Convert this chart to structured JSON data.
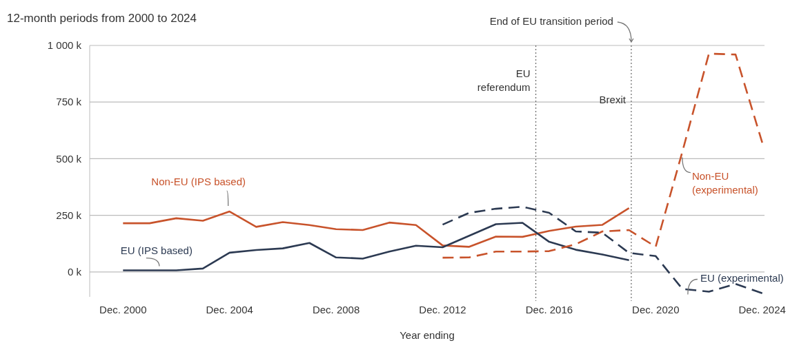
{
  "chart_data": {
    "type": "line",
    "title": "12-month periods from 2000 to 2024",
    "xlabel": "Year ending",
    "xlim": [
      "1999-09",
      "2025-01"
    ],
    "xticks": [
      {
        "value": "2000-12",
        "label": "Dec. 2000"
      },
      {
        "value": "2004-12",
        "label": "Dec. 2004"
      },
      {
        "value": "2008-12",
        "label": "Dec. 2008"
      },
      {
        "value": "2012-12",
        "label": "Dec. 2012"
      },
      {
        "value": "2016-12",
        "label": "Dec. 2016"
      },
      {
        "value": "2020-12",
        "label": "Dec. 2020"
      },
      {
        "value": "2024-12",
        "label": "Dec. 2024"
      }
    ],
    "ylim": [
      -110,
      1000
    ],
    "yticks": [
      {
        "value": 0,
        "label": "0 k"
      },
      {
        "value": 250,
        "label": "250 k"
      },
      {
        "value": 500,
        "label": "500 k"
      },
      {
        "value": 750,
        "label": "750 k"
      },
      {
        "value": 1000,
        "label": "1 000 k"
      }
    ],
    "grid": "y",
    "series": [
      {
        "name": "Non-EU (IPS based)",
        "color": "#c8532b",
        "line_style": "solid",
        "x": [
          "2000-12",
          "2001-12",
          "2002-12",
          "2003-12",
          "2004-12",
          "2005-12",
          "2006-12",
          "2007-12",
          "2008-12",
          "2009-12",
          "2010-12",
          "2011-12",
          "2012-12",
          "2013-12",
          "2014-12",
          "2015-12",
          "2016-12",
          "2017-12",
          "2018-12",
          "2019-12"
        ],
        "values": [
          215,
          215,
          237,
          226,
          267,
          199,
          220,
          207,
          189,
          185,
          218,
          207,
          117,
          111,
          156,
          155,
          181,
          200,
          208,
          282
        ]
      },
      {
        "name": "EU (IPS based)",
        "color": "#2c3a52",
        "line_style": "solid",
        "x": [
          "2000-12",
          "2001-12",
          "2002-12",
          "2003-12",
          "2004-12",
          "2005-12",
          "2006-12",
          "2007-12",
          "2008-12",
          "2009-12",
          "2010-12",
          "2011-12",
          "2012-12",
          "2013-12",
          "2014-12",
          "2015-12",
          "2016-12",
          "2017-12",
          "2018-12",
          "2019-12"
        ],
        "values": [
          7,
          7,
          7,
          15,
          85,
          97,
          104,
          128,
          64,
          59,
          90,
          116,
          109,
          160,
          211,
          217,
          133,
          98,
          77,
          52
        ]
      },
      {
        "name": "Non-EU (experimental)",
        "color": "#c8532b",
        "line_style": "dashed",
        "x": [
          "2012-12",
          "2013-12",
          "2014-12",
          "2015-12",
          "2016-12",
          "2017-12",
          "2018-12",
          "2019-12",
          "2020-12",
          "2021-12",
          "2022-12",
          "2023-12",
          "2024-12"
        ],
        "values": [
          63,
          64,
          90,
          90,
          92,
          122,
          179,
          185,
          111,
          530,
          964,
          960,
          571
        ]
      },
      {
        "name": "EU (experimental)",
        "color": "#2c3a52",
        "line_style": "dashed",
        "x": [
          "2012-12",
          "2013-12",
          "2014-12",
          "2015-12",
          "2016-12",
          "2017-12",
          "2018-12",
          "2019-12",
          "2020-12",
          "2021-12",
          "2022-12",
          "2023-12",
          "2024-12"
        ],
        "values": [
          209,
          261,
          279,
          288,
          261,
          179,
          173,
          84,
          70,
          -75,
          -87,
          -53,
          -94
        ]
      }
    ],
    "ref_lines": [
      {
        "axis": "x",
        "value": "2016-06",
        "label": "EU referendum",
        "color": "#666666",
        "line_style": "dotted"
      },
      {
        "axis": "x",
        "value": "2020-01",
        "label": "Brexit",
        "color": "#666666",
        "line_style": "dotted"
      }
    ],
    "annotations": [
      {
        "text": "End of EU transition period",
        "x": "2020-01",
        "y": 1000
      }
    ]
  }
}
